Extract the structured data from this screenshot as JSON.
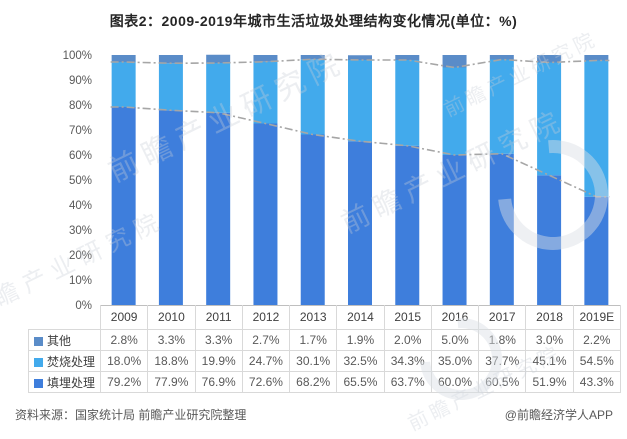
{
  "title": "图表2：2009-2019年城市生活垃圾处理结构变化情况(单位：%)",
  "source_left": "资料来源：国家统计局 前瞻产业研究院整理",
  "source_right": "@前瞻经济学人APP",
  "watermark_text": "前瞻产业研究院",
  "chart_data": {
    "type": "bar",
    "stacked": true,
    "title": "图表2：2009-2019年城市生活垃圾处理结构变化情况(单位：%)",
    "categories": [
      "2009",
      "2010",
      "2011",
      "2012",
      "2013",
      "2014",
      "2015",
      "2016",
      "2017",
      "2018",
      "2019E"
    ],
    "series": [
      {
        "name": "其他",
        "color": "#5A8CC8",
        "values": [
          2.8,
          3.3,
          3.3,
          2.7,
          1.7,
          1.9,
          2.0,
          5.0,
          1.8,
          3.0,
          2.2
        ]
      },
      {
        "name": "焚烧处理",
        "color": "#42AAEC",
        "values": [
          18.0,
          18.8,
          19.9,
          24.7,
          30.1,
          32.5,
          34.3,
          35.0,
          37.7,
          45.1,
          54.5
        ]
      },
      {
        "name": "填埋处理",
        "color": "#3E7EDC",
        "values": [
          79.2,
          77.9,
          76.9,
          72.6,
          68.2,
          65.5,
          63.7,
          60.0,
          60.5,
          51.9,
          43.3
        ]
      }
    ],
    "stack_order_bottom_to_top": [
      "填埋处理",
      "焚烧处理",
      "其他"
    ],
    "y_ticks": [
      "100%",
      "90%",
      "80%",
      "70%",
      "60%",
      "50%",
      "40%",
      "30%",
      "20%",
      "10%",
      "0%"
    ],
    "ylim": [
      0,
      100
    ],
    "grid": false,
    "legend_position": "table-left",
    "dash_lines": {
      "style": "dash-dot",
      "color": "#a6a6a6",
      "tracks": [
        "top of 焚烧处理 segment (100% - 其他)",
        "top of 填埋处理 segment"
      ]
    },
    "data_table": {
      "shown_below_axis": true,
      "value_format": "one decimal + %"
    }
  }
}
